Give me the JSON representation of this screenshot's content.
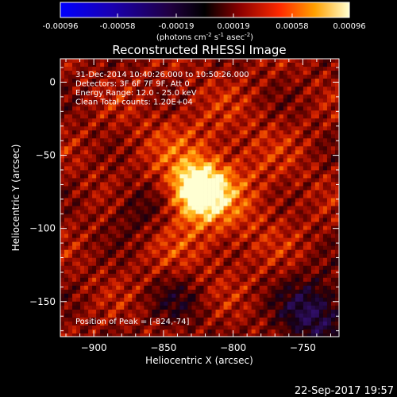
{
  "chart_data": {
    "type": "heatmap",
    "title": "Reconstructed RHESSI Image",
    "xlabel": "Heliocentric X (arcsec)",
    "ylabel": "Heliocentric Y (arcsec)",
    "xlim": [
      -924,
      -724
    ],
    "ylim": [
      -174,
      16
    ],
    "xticks": [
      -900,
      -850,
      -800,
      -750
    ],
    "yticks": [
      0,
      -50,
      -100,
      -150
    ],
    "peak": {
      "x": -824,
      "y": -74
    },
    "colorbar": {
      "ticks": [
        "-0.00096",
        "-0.00058",
        "-0.00019",
        "0.00019",
        "0.00058",
        "0.00096"
      ],
      "units_prefix": "(photons cm",
      "units_e1": "-2",
      "units_mid": " s",
      "units_e2": "-1",
      "units_mid2": " asec",
      "units_e3": "-2",
      "units_suffix": ")",
      "range": [
        -0.00096,
        0.00096
      ]
    },
    "annotations": [
      "31-Dec-2014 10:40:26.000 to 10:50:26.000",
      "Detectors: 3F 6F 7F 9F, Att 0",
      "Energy Range: 12.0 - 25.0 keV",
      "Clean     Total counts: 1.20E+04"
    ],
    "peak_label": "Position of Peak = [-824,-74]"
  },
  "footer": {
    "timestamp": "22-Sep-2017 19:57"
  }
}
